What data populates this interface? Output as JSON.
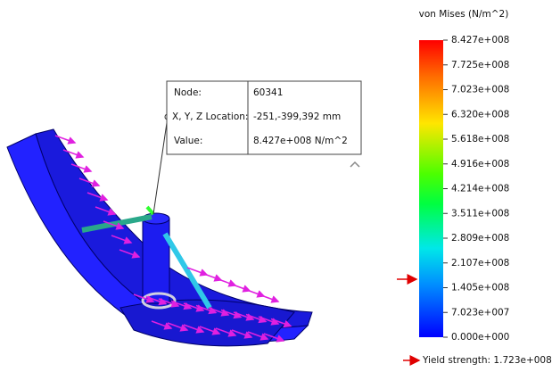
{
  "legend": {
    "title": "von Mises (N/m^2)",
    "labels": [
      "8.427e+008",
      "7.725e+008",
      "7.023e+008",
      "6.320e+008",
      "5.618e+008",
      "4.916e+008",
      "4.214e+008",
      "3.511e+008",
      "2.809e+008",
      "2.107e+008",
      "1.405e+008",
      "7.023e+007",
      "0.000e+000"
    ]
  },
  "probe": {
    "rows": [
      [
        "Node:",
        "60341"
      ],
      [
        "X, Y, Z Location:",
        "-251,-399,392 mm"
      ],
      [
        "Value:",
        "8.427e+008 N/m^2"
      ]
    ]
  },
  "yield_strength": "Yield strength: 1.723e+008"
}
